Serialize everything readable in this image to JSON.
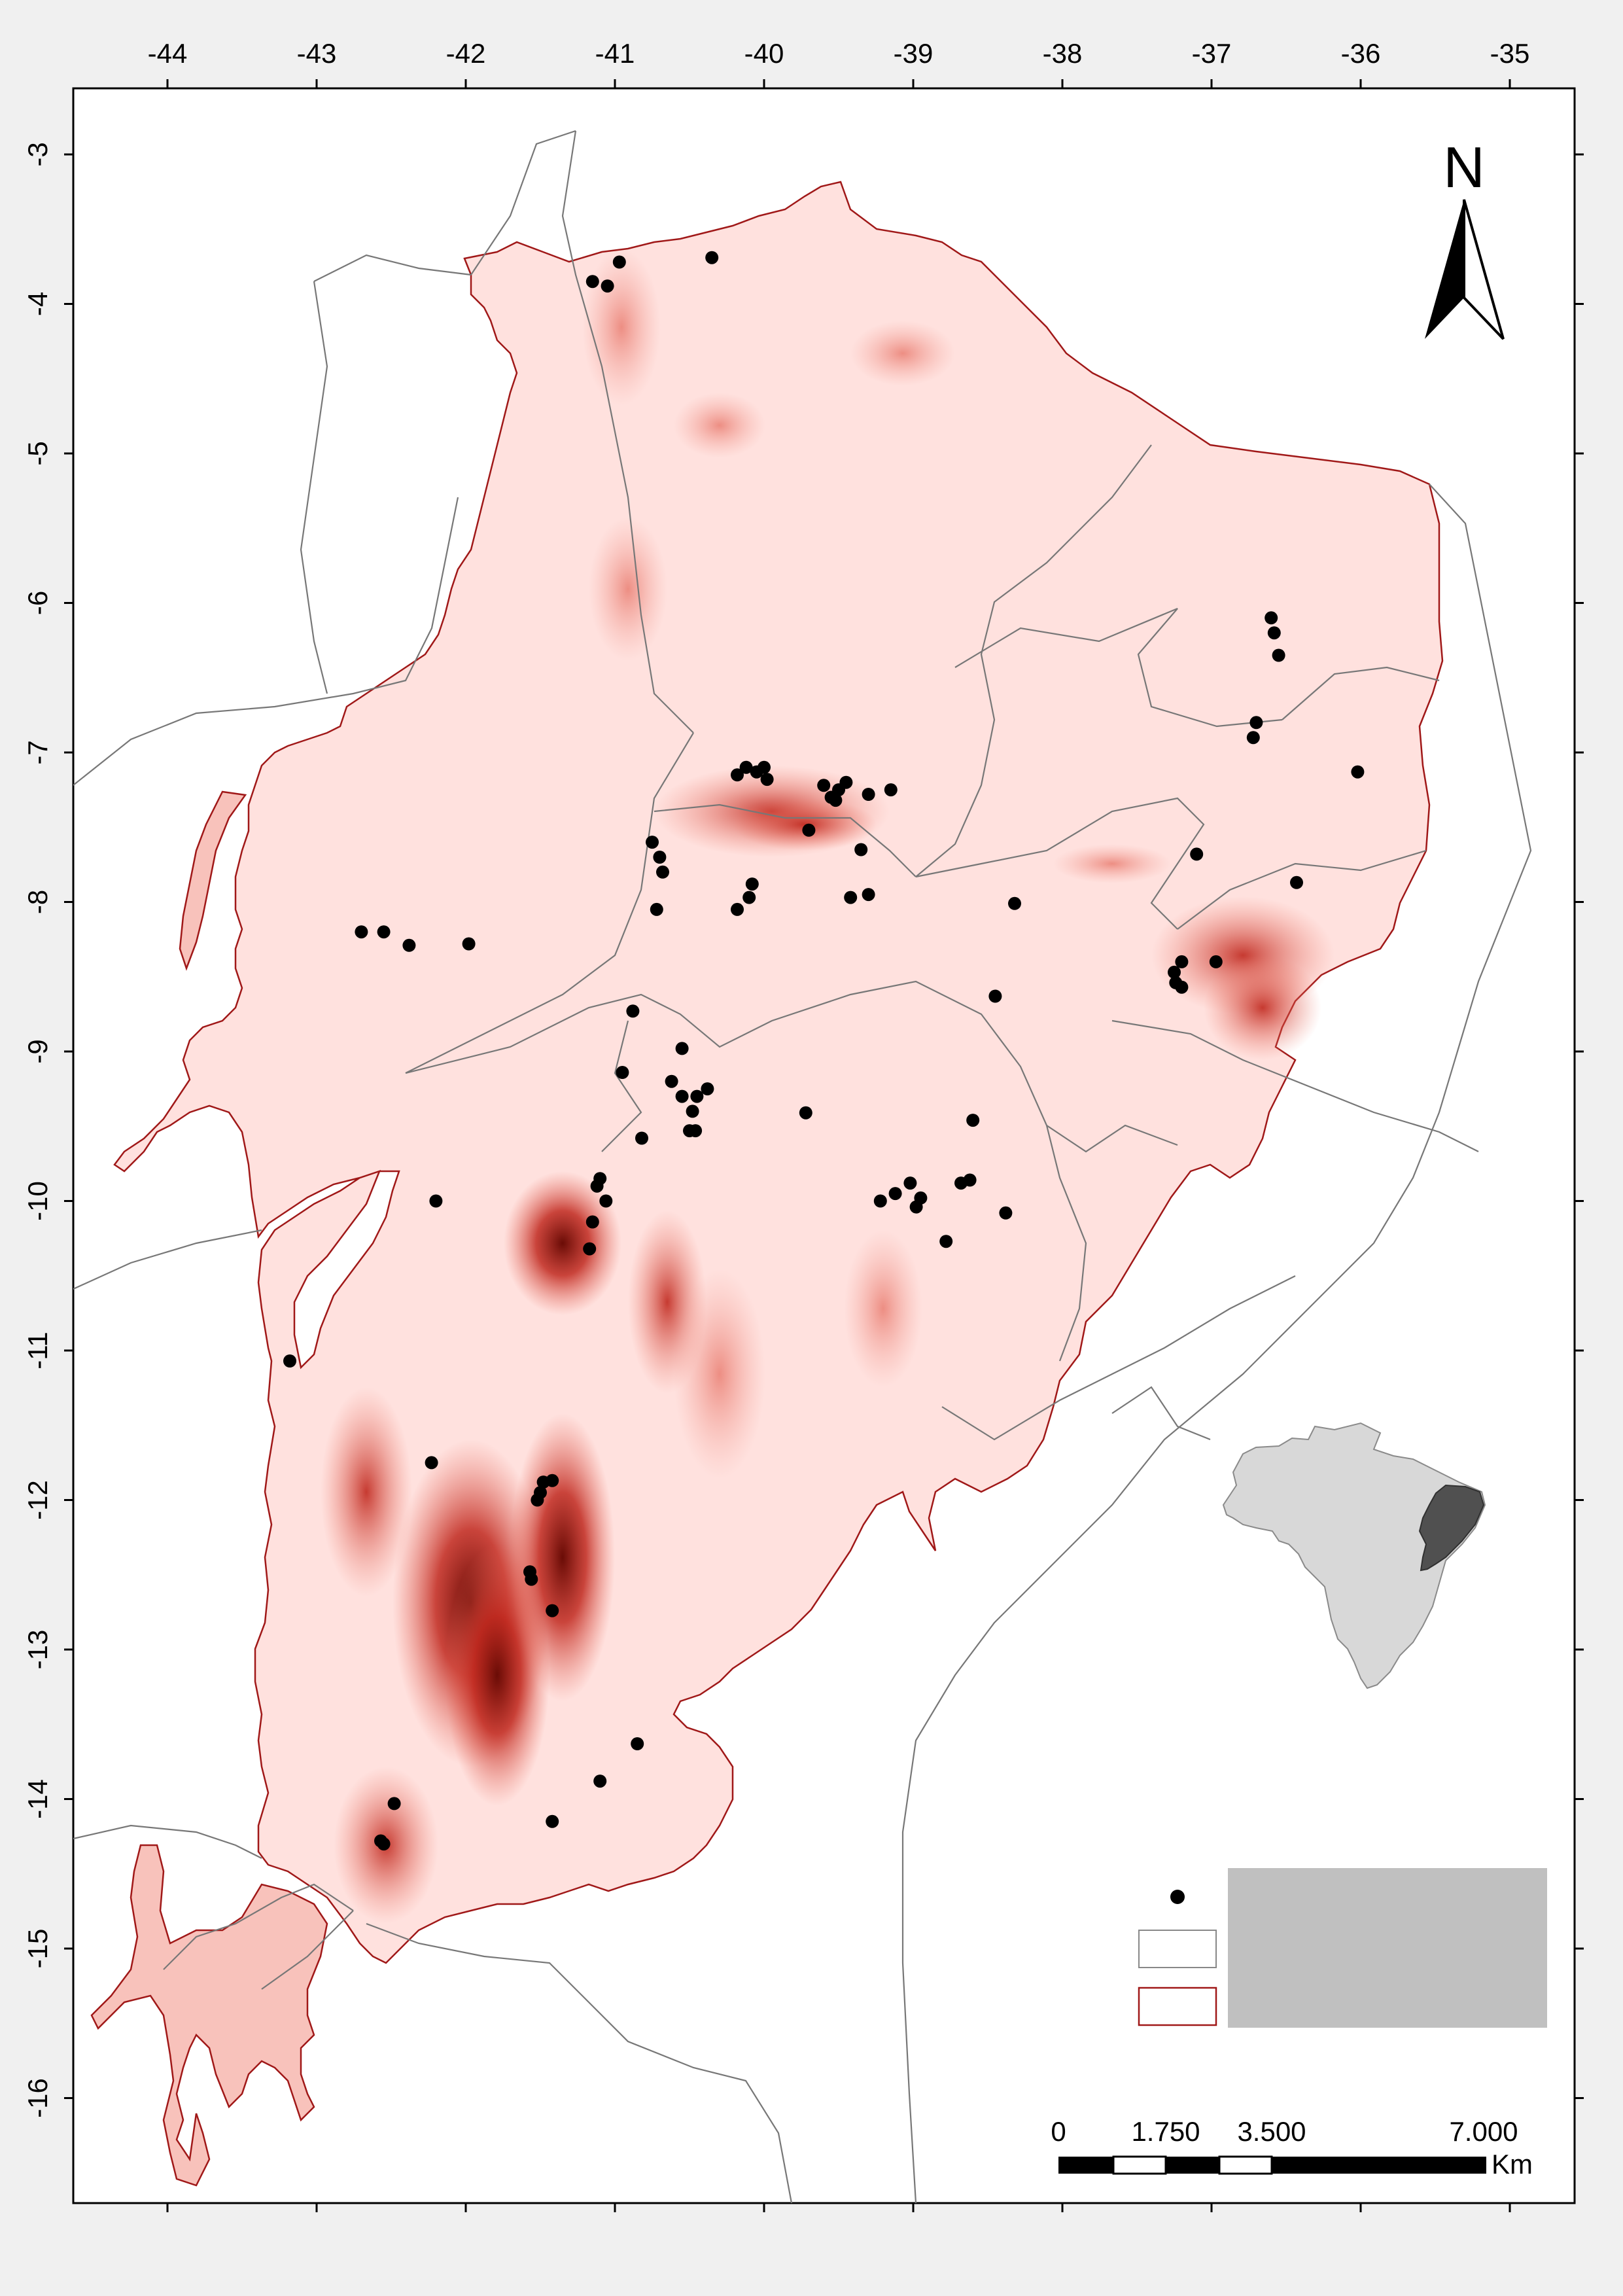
{
  "map": {
    "x_axis": {
      "labels": [
        "-44",
        "-43",
        "-42",
        "-41",
        "-40",
        "-39",
        "-38",
        "-37",
        "-36",
        "-35"
      ],
      "values": [
        -44,
        -43,
        -42,
        -41,
        -40,
        -39,
        -38,
        -37,
        -36,
        -35
      ]
    },
    "y_axis": {
      "labels": [
        "-3",
        "-4",
        "-5",
        "-6",
        "-7",
        "-8",
        "-9",
        "-10",
        "-11",
        "-12",
        "-13",
        "-14",
        "-15",
        "-16"
      ],
      "values": [
        -3,
        -4,
        -5,
        -6,
        -7,
        -8,
        -9,
        -10,
        -11,
        -12,
        -13,
        -14,
        -15,
        -16
      ]
    },
    "north_arrow_label": "N",
    "scale_bar": {
      "tick_labels": [
        "0",
        "1.750",
        "3.500",
        "7.000"
      ],
      "unit": "Km"
    },
    "colors": {
      "frame_background": "#ffffff",
      "region_fill_light": "#ffe1de",
      "region_fill_mid": "#f4a096",
      "region_fill_dark": "#c0281e",
      "region_fill_darkest": "#6a0c06",
      "region_outline": "#a01818",
      "boundary_lines": "#777777",
      "occurrence_points": "#000000",
      "legend_box": "#c0c0c0",
      "inset_brazil": "#d8d8d8",
      "inset_highlight": "#505050"
    },
    "occurrence_points": [
      {
        "lon": -41.15,
        "lat": -3.85
      },
      {
        "lon": -41.05,
        "lat": -3.88
      },
      {
        "lon": -40.97,
        "lat": -3.72
      },
      {
        "lon": -40.35,
        "lat": -3.69
      },
      {
        "lon": -40.18,
        "lat": -7.15
      },
      {
        "lon": -40.12,
        "lat": -7.1
      },
      {
        "lon": -40.05,
        "lat": -7.13
      },
      {
        "lon": -39.98,
        "lat": -7.18
      },
      {
        "lon": -40.0,
        "lat": -7.1
      },
      {
        "lon": -39.6,
        "lat": -7.22
      },
      {
        "lon": -39.55,
        "lat": -7.3
      },
      {
        "lon": -39.5,
        "lat": -7.25
      },
      {
        "lon": -39.45,
        "lat": -7.2
      },
      {
        "lon": -39.52,
        "lat": -7.32
      },
      {
        "lon": -39.3,
        "lat": -7.28
      },
      {
        "lon": -39.15,
        "lat": -7.25
      },
      {
        "lon": -39.7,
        "lat": -7.52
      },
      {
        "lon": -39.35,
        "lat": -7.65
      },
      {
        "lon": -40.75,
        "lat": -7.6
      },
      {
        "lon": -40.7,
        "lat": -7.7
      },
      {
        "lon": -40.68,
        "lat": -7.8
      },
      {
        "lon": -40.72,
        "lat": -8.05
      },
      {
        "lon": -40.08,
        "lat": -7.88
      },
      {
        "lon": -40.1,
        "lat": -7.97
      },
      {
        "lon": -40.18,
        "lat": -8.05
      },
      {
        "lon": -39.42,
        "lat": -7.97
      },
      {
        "lon": -39.3,
        "lat": -7.95
      },
      {
        "lon": -38.32,
        "lat": -8.01
      },
      {
        "lon": -42.7,
        "lat": -8.2
      },
      {
        "lon": -42.55,
        "lat": -8.2
      },
      {
        "lon": -42.38,
        "lat": -8.29
      },
      {
        "lon": -41.98,
        "lat": -8.28
      },
      {
        "lon": -40.88,
        "lat": -8.73
      },
      {
        "lon": -40.55,
        "lat": -8.98
      },
      {
        "lon": -40.95,
        "lat": -9.14
      },
      {
        "lon": -40.62,
        "lat": -9.2
      },
      {
        "lon": -40.55,
        "lat": -9.3
      },
      {
        "lon": -40.45,
        "lat": -9.3
      },
      {
        "lon": -40.38,
        "lat": -9.25
      },
      {
        "lon": -40.48,
        "lat": -9.4
      },
      {
        "lon": -40.5,
        "lat": -9.53
      },
      {
        "lon": -40.46,
        "lat": -9.53
      },
      {
        "lon": -40.82,
        "lat": -9.58
      },
      {
        "lon": -39.72,
        "lat": -9.41
      },
      {
        "lon": -38.6,
        "lat": -9.46
      },
      {
        "lon": -38.45,
        "lat": -8.63
      },
      {
        "lon": -41.1,
        "lat": -9.85
      },
      {
        "lon": -41.12,
        "lat": -9.9
      },
      {
        "lon": -41.06,
        "lat": -10.0
      },
      {
        "lon": -41.15,
        "lat": -10.14
      },
      {
        "lon": -41.17,
        "lat": -10.32
      },
      {
        "lon": -42.2,
        "lat": -10.0
      },
      {
        "lon": -39.22,
        "lat": -10.0
      },
      {
        "lon": -39.12,
        "lat": -9.95
      },
      {
        "lon": -39.02,
        "lat": -9.88
      },
      {
        "lon": -38.95,
        "lat": -9.98
      },
      {
        "lon": -38.98,
        "lat": -10.04
      },
      {
        "lon": -38.68,
        "lat": -9.88
      },
      {
        "lon": -38.62,
        "lat": -9.86
      },
      {
        "lon": -38.38,
        "lat": -10.08
      },
      {
        "lon": -38.78,
        "lat": -10.27
      },
      {
        "lon": -43.18,
        "lat": -11.07
      },
      {
        "lon": -42.23,
        "lat": -11.75
      },
      {
        "lon": -41.48,
        "lat": -11.88
      },
      {
        "lon": -41.42,
        "lat": -11.87
      },
      {
        "lon": -41.52,
        "lat": -12.0
      },
      {
        "lon": -41.5,
        "lat": -11.95
      },
      {
        "lon": -41.57,
        "lat": -12.48
      },
      {
        "lon": -41.56,
        "lat": -12.53
      },
      {
        "lon": -41.42,
        "lat": -12.74
      },
      {
        "lon": -40.85,
        "lat": -13.63
      },
      {
        "lon": -41.1,
        "lat": -13.88
      },
      {
        "lon": -41.42,
        "lat": -14.15
      },
      {
        "lon": -42.48,
        "lat": -14.03
      },
      {
        "lon": -42.57,
        "lat": -14.28
      },
      {
        "lon": -42.55,
        "lat": -14.3
      },
      {
        "lon": -36.6,
        "lat": -6.1
      },
      {
        "lon": -36.58,
        "lat": -6.2
      },
      {
        "lon": -36.55,
        "lat": -6.35
      },
      {
        "lon": -36.7,
        "lat": -6.8
      },
      {
        "lon": -36.72,
        "lat": -6.9
      },
      {
        "lon": -36.02,
        "lat": -7.13
      },
      {
        "lon": -37.1,
        "lat": -7.68
      },
      {
        "lon": -36.43,
        "lat": -7.87
      },
      {
        "lon": -37.2,
        "lat": -8.4
      },
      {
        "lon": -37.25,
        "lat": -8.47
      },
      {
        "lon": -37.24,
        "lat": -8.54
      },
      {
        "lon": -37.2,
        "lat": -8.57
      },
      {
        "lon": -36.97,
        "lat": -8.4
      }
    ]
  }
}
